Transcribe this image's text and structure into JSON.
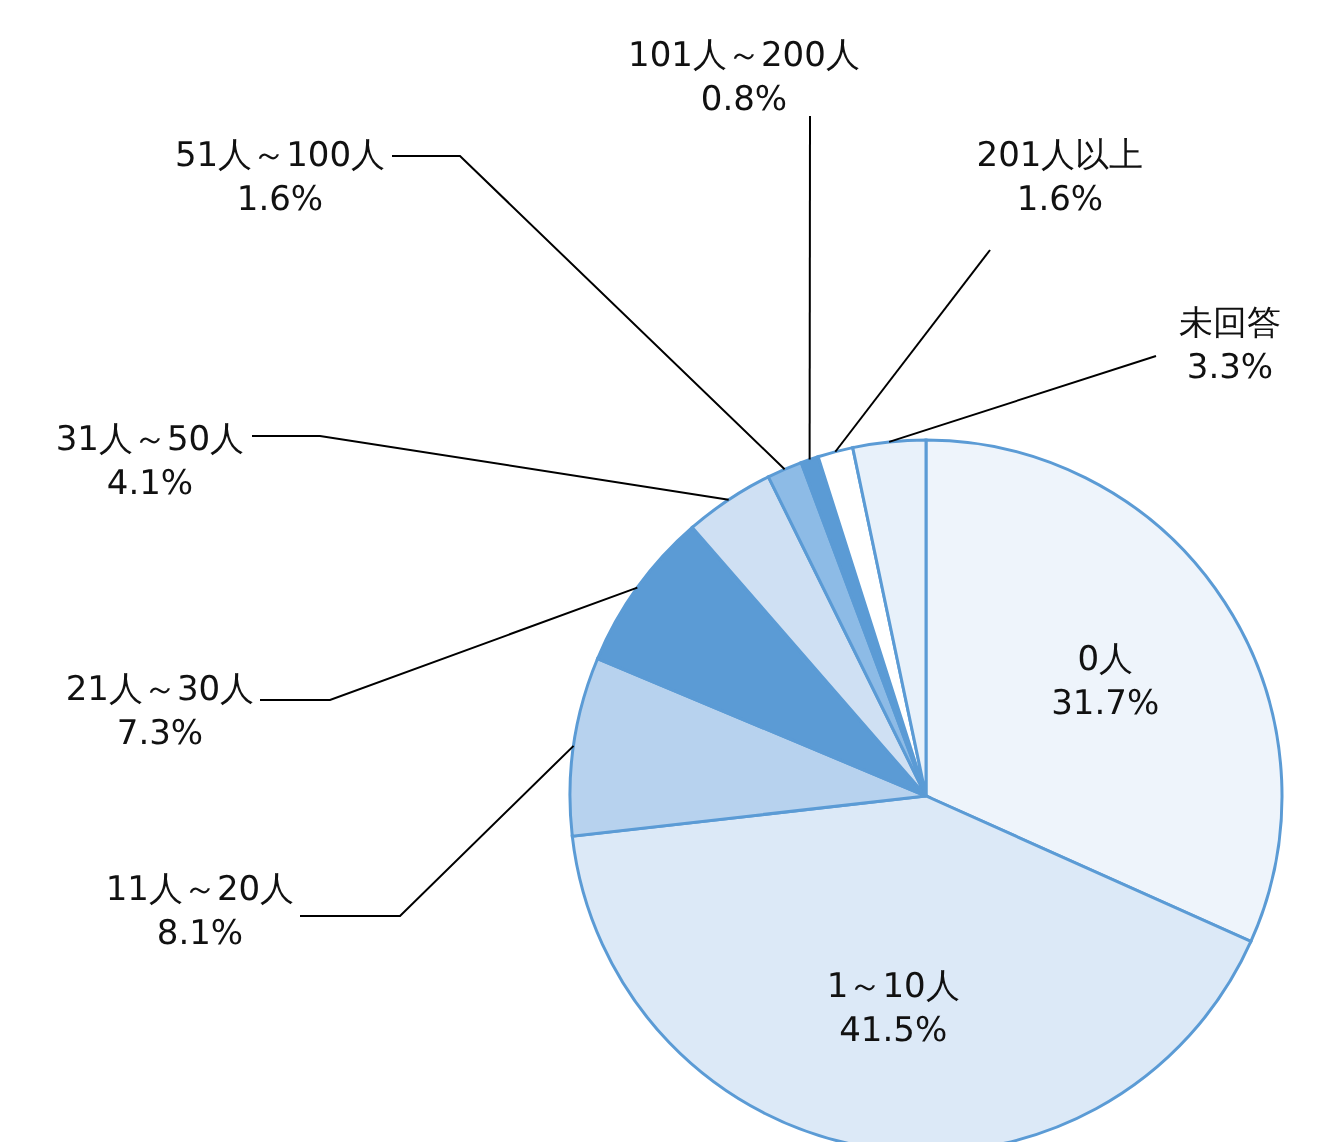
{
  "chart_data": {
    "type": "pie",
    "categories": [
      "0人",
      "1～10人",
      "11人～20人",
      "21人～30人",
      "31人～50人",
      "51人～100人",
      "101人～200人",
      "201人以上",
      "未回答"
    ],
    "values": [
      31.7,
      41.5,
      8.1,
      7.3,
      4.1,
      1.6,
      0.8,
      1.6,
      3.3
    ],
    "value_labels": [
      "31.7%",
      "41.5%",
      "8.1%",
      "7.3%",
      "4.1%",
      "1.6%",
      "0.8%",
      "1.6%",
      "3.3%"
    ],
    "colors": [
      "#eef4fb",
      "#dce9f7",
      "#b7d2ee",
      "#5b9bd5",
      "#cfe0f3",
      "#8dbbe6",
      "#5b9bd5",
      "#ffffff",
      "#e8f1fa"
    ]
  }
}
